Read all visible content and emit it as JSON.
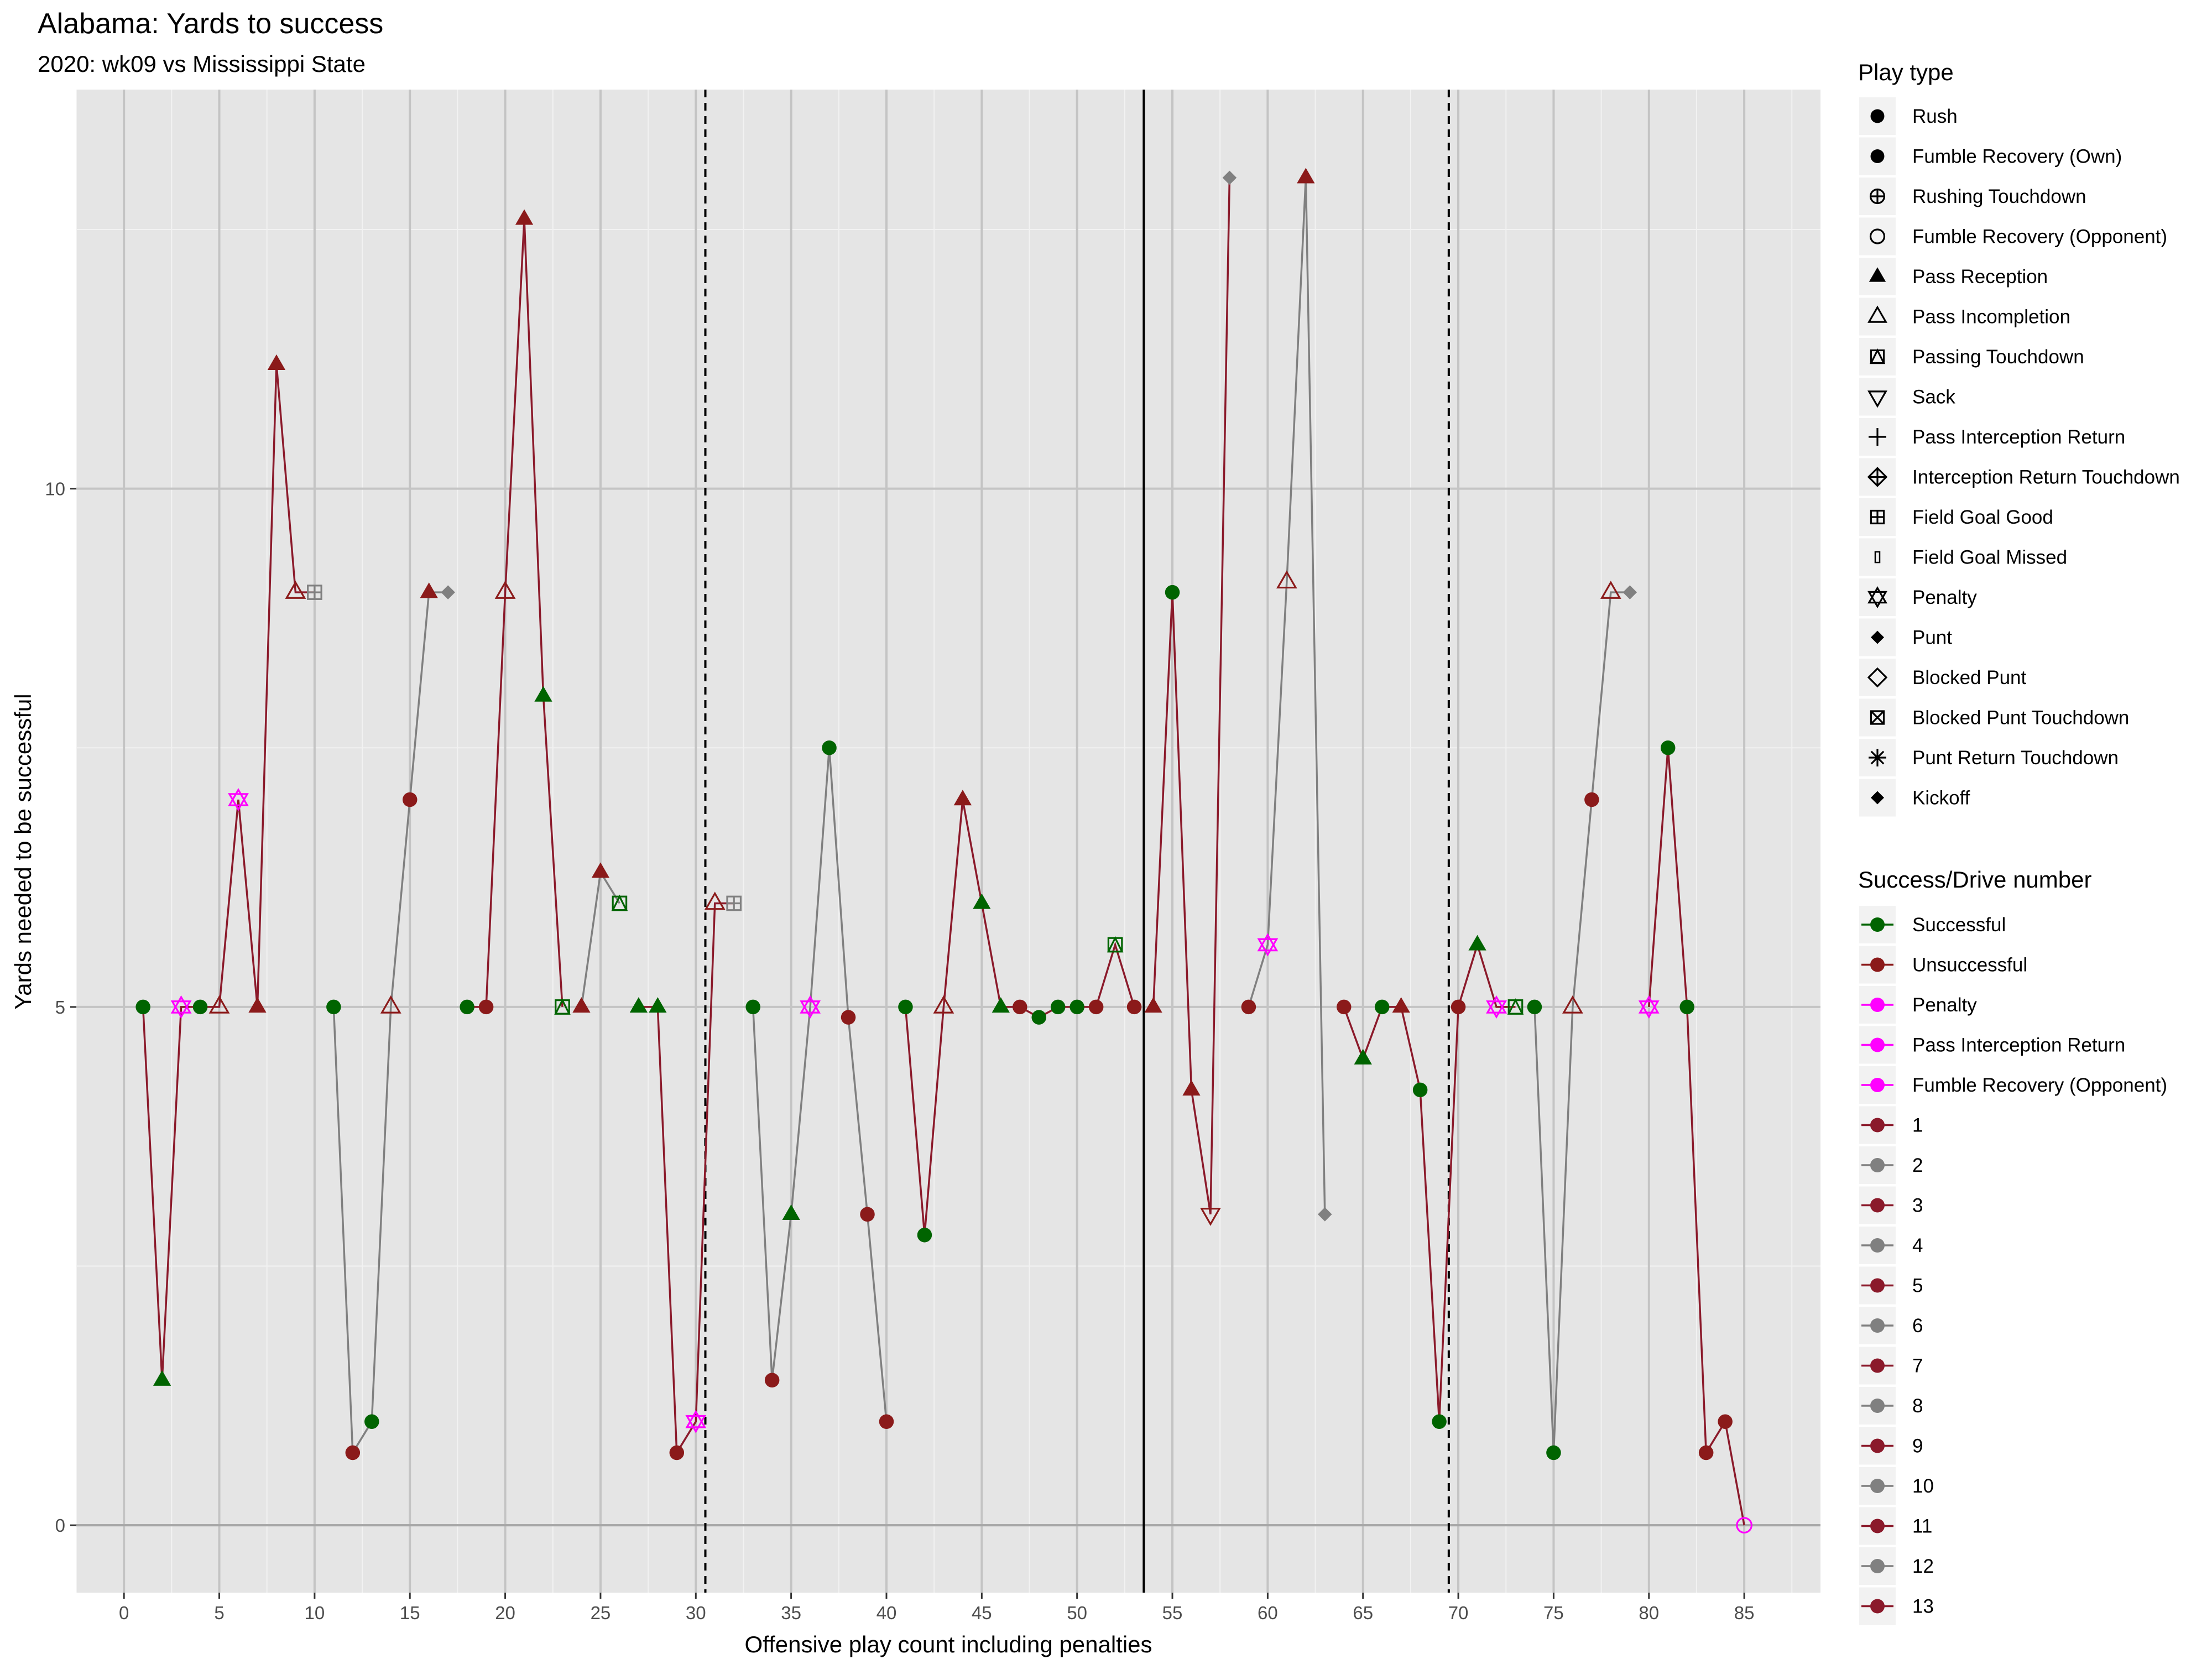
{
  "chart_data": {
    "type": "line",
    "title": "Alabama: Yards to success",
    "subtitle": "2020: wk09 vs Mississippi State",
    "xlabel": "Offensive play count including penalties",
    "ylabel": "Yards needed to be successful",
    "xlim": [
      -2.5,
      89
    ],
    "ylim": [
      -0.65,
      13.85
    ],
    "x_ticks": [
      0,
      5,
      10,
      15,
      20,
      25,
      30,
      35,
      40,
      45,
      50,
      55,
      60,
      65,
      70,
      75,
      80,
      85
    ],
    "y_ticks": [
      0,
      5,
      10
    ],
    "grid": true,
    "vlines": [
      {
        "x": 30.5,
        "style": "dashed"
      },
      {
        "x": 53.5,
        "style": "solid"
      },
      {
        "x": 69.5,
        "style": "dashed"
      }
    ],
    "colors": {
      "Successful": "#006400",
      "Unsuccessful": "#8b1a1a",
      "Penalty": "#ff00ff",
      "drive_odd": "#8b1a2b",
      "drive_even": "#808080"
    },
    "points": [
      {
        "x": 1,
        "y": 5,
        "play": "Rush",
        "result": "Successful",
        "drive": 1
      },
      {
        "x": 2,
        "y": 1.4,
        "play": "Pass Reception",
        "result": "Successful",
        "drive": 1
      },
      {
        "x": 3,
        "y": 5,
        "play": "Penalty",
        "result": "Penalty",
        "drive": 1
      },
      {
        "x": 4,
        "y": 5,
        "play": "Rush",
        "result": "Successful",
        "drive": 1
      },
      {
        "x": 5,
        "y": 5,
        "play": "Pass Incompletion",
        "result": "Unsuccessful",
        "drive": 1
      },
      {
        "x": 6,
        "y": 7,
        "play": "Penalty",
        "result": "Penalty",
        "drive": 1
      },
      {
        "x": 7,
        "y": 5,
        "play": "Pass Reception",
        "result": "Unsuccessful",
        "drive": 1
      },
      {
        "x": 8,
        "y": 11.2,
        "play": "Pass Reception",
        "result": "Unsuccessful",
        "drive": 1
      },
      {
        "x": 9,
        "y": 9,
        "play": "Pass Incompletion",
        "result": "Unsuccessful",
        "drive": 1
      },
      {
        "x": 10,
        "y": 9,
        "play": "Field Goal Good",
        "result": "Unsuccessful",
        "drive": 1
      },
      {
        "x": 11,
        "y": 5,
        "play": "Rush",
        "result": "Successful",
        "drive": 2
      },
      {
        "x": 12,
        "y": 0.7,
        "play": "Rush",
        "result": "Unsuccessful",
        "drive": 2
      },
      {
        "x": 13,
        "y": 1,
        "play": "Rush",
        "result": "Successful",
        "drive": 2
      },
      {
        "x": 14,
        "y": 5,
        "play": "Pass Incompletion",
        "result": "Unsuccessful",
        "drive": 2
      },
      {
        "x": 15,
        "y": 7,
        "play": "Rush",
        "result": "Unsuccessful",
        "drive": 2
      },
      {
        "x": 16,
        "y": 9,
        "play": "Pass Reception",
        "result": "Unsuccessful",
        "drive": 2
      },
      {
        "x": 17,
        "y": 9,
        "play": "Punt",
        "result": "Unsuccessful",
        "drive": 2
      },
      {
        "x": 18,
        "y": 5,
        "play": "Rush",
        "result": "Successful",
        "drive": 3
      },
      {
        "x": 19,
        "y": 5,
        "play": "Rush",
        "result": "Unsuccessful",
        "drive": 3
      },
      {
        "x": 20,
        "y": 9,
        "play": "Pass Incompletion",
        "result": "Unsuccessful",
        "drive": 3
      },
      {
        "x": 21,
        "y": 12.6,
        "play": "Pass Reception",
        "result": "Unsuccessful",
        "drive": 3
      },
      {
        "x": 22,
        "y": 8,
        "play": "Pass Reception",
        "result": "Successful",
        "drive": 3
      },
      {
        "x": 23,
        "y": 5,
        "play": "Passing Touchdown",
        "result": "Successful",
        "drive": 3
      },
      {
        "x": 24,
        "y": 5,
        "play": "Pass Reception",
        "result": "Unsuccessful",
        "drive": 4
      },
      {
        "x": 25,
        "y": 6.3,
        "play": "Pass Reception",
        "result": "Unsuccessful",
        "drive": 4
      },
      {
        "x": 26,
        "y": 6,
        "play": "Passing Touchdown",
        "result": "Successful",
        "drive": 4
      },
      {
        "x": 27,
        "y": 5,
        "play": "Pass Reception",
        "result": "Successful",
        "drive": 5
      },
      {
        "x": 28,
        "y": 5,
        "play": "Pass Reception",
        "result": "Successful",
        "drive": 5
      },
      {
        "x": 29,
        "y": 0.7,
        "play": "Rush",
        "result": "Unsuccessful",
        "drive": 5
      },
      {
        "x": 30,
        "y": 1,
        "play": "Penalty",
        "result": "Penalty",
        "drive": 5
      },
      {
        "x": 31,
        "y": 6,
        "play": "Pass Incompletion",
        "result": "Unsuccessful",
        "drive": 5
      },
      {
        "x": 32,
        "y": 6,
        "play": "Field Goal Good",
        "result": "Unsuccessful",
        "drive": 5
      },
      {
        "x": 33,
        "y": 5,
        "play": "Rush",
        "result": "Successful",
        "drive": 6
      },
      {
        "x": 34,
        "y": 1.4,
        "play": "Rush",
        "result": "Unsuccessful",
        "drive": 6
      },
      {
        "x": 35,
        "y": 3,
        "play": "Pass Reception",
        "result": "Successful",
        "drive": 6
      },
      {
        "x": 36,
        "y": 5,
        "play": "Penalty",
        "result": "Penalty",
        "drive": 6
      },
      {
        "x": 37,
        "y": 7.5,
        "play": "Rush",
        "result": "Successful",
        "drive": 6
      },
      {
        "x": 38,
        "y": 4.9,
        "play": "Rush",
        "result": "Unsuccessful",
        "drive": 6
      },
      {
        "x": 39,
        "y": 3,
        "play": "Rush",
        "result": "Unsuccessful",
        "drive": 6
      },
      {
        "x": 40,
        "y": 1,
        "play": "Rush",
        "result": "Unsuccessful",
        "drive": 6
      },
      {
        "x": 41,
        "y": 5,
        "play": "Rush",
        "result": "Successful",
        "drive": 7
      },
      {
        "x": 42,
        "y": 2.8,
        "play": "Rush",
        "result": "Successful",
        "drive": 7
      },
      {
        "x": 43,
        "y": 5,
        "play": "Pass Incompletion",
        "result": "Unsuccessful",
        "drive": 7
      },
      {
        "x": 44,
        "y": 7,
        "play": "Pass Reception",
        "result": "Unsuccessful",
        "drive": 7
      },
      {
        "x": 45,
        "y": 6,
        "play": "Pass Reception",
        "result": "Successful",
        "drive": 7
      },
      {
        "x": 46,
        "y": 5,
        "play": "Pass Reception",
        "result": "Successful",
        "drive": 7
      },
      {
        "x": 47,
        "y": 5,
        "play": "Rush",
        "result": "Unsuccessful",
        "drive": 7
      },
      {
        "x": 48,
        "y": 4.9,
        "play": "Rush",
        "result": "Successful",
        "drive": 7
      },
      {
        "x": 49,
        "y": 5,
        "play": "Rush",
        "result": "Successful",
        "drive": 7
      },
      {
        "x": 50,
        "y": 5,
        "play": "Rush",
        "result": "Successful",
        "drive": 7
      },
      {
        "x": 51,
        "y": 5,
        "play": "Rush",
        "result": "Unsuccessful",
        "drive": 7
      },
      {
        "x": 52,
        "y": 5.6,
        "play": "Passing Touchdown",
        "result": "Successful",
        "drive": 7
      },
      {
        "x": 53,
        "y": 5,
        "play": "Rush",
        "result": "Unsuccessful",
        "drive": 7
      },
      {
        "x": 54,
        "y": 5,
        "play": "Pass Reception",
        "result": "Unsuccessful",
        "drive": 9
      },
      {
        "x": 55,
        "y": 9,
        "play": "Rush",
        "result": "Successful",
        "drive": 9
      },
      {
        "x": 56,
        "y": 4.2,
        "play": "Pass Reception",
        "result": "Unsuccessful",
        "drive": 9
      },
      {
        "x": 57,
        "y": 3,
        "play": "Sack",
        "result": "Unsuccessful",
        "drive": 9
      },
      {
        "x": 58,
        "y": 13,
        "play": "Punt",
        "result": "Unsuccessful",
        "drive": 9
      },
      {
        "x": 59,
        "y": 5,
        "play": "Rush",
        "result": "Unsuccessful",
        "drive": 10
      },
      {
        "x": 60,
        "y": 5.6,
        "play": "Penalty",
        "result": "Penalty",
        "drive": 10
      },
      {
        "x": 61,
        "y": 9.1,
        "play": "Pass Incompletion",
        "result": "Unsuccessful",
        "drive": 10
      },
      {
        "x": 62,
        "y": 13,
        "play": "Pass Reception",
        "result": "Unsuccessful",
        "drive": 10
      },
      {
        "x": 63,
        "y": 3,
        "play": "Punt",
        "result": "Unsuccessful",
        "drive": 10
      },
      {
        "x": 64,
        "y": 5,
        "play": "Rush",
        "result": "Unsuccessful",
        "drive": 11
      },
      {
        "x": 65,
        "y": 4.5,
        "play": "Pass Reception",
        "result": "Successful",
        "drive": 11
      },
      {
        "x": 66,
        "y": 5,
        "play": "Rush",
        "result": "Successful",
        "drive": 11
      },
      {
        "x": 67,
        "y": 5,
        "play": "Pass Reception",
        "result": "Unsuccessful",
        "drive": 11
      },
      {
        "x": 68,
        "y": 4.2,
        "play": "Rush",
        "result": "Successful",
        "drive": 11
      },
      {
        "x": 69,
        "y": 1,
        "play": "Rush",
        "result": "Successful",
        "drive": 11
      },
      {
        "x": 70,
        "y": 5,
        "play": "Rush",
        "result": "Unsuccessful",
        "drive": 11
      },
      {
        "x": 71,
        "y": 5.6,
        "play": "Pass Reception",
        "result": "Successful",
        "drive": 11
      },
      {
        "x": 72,
        "y": 5,
        "play": "Penalty",
        "result": "Penalty",
        "drive": 11
      },
      {
        "x": 73,
        "y": 5,
        "play": "Passing Touchdown",
        "result": "Successful",
        "drive": 11
      },
      {
        "x": 74,
        "y": 5,
        "play": "Rush",
        "result": "Successful",
        "drive": 12
      },
      {
        "x": 75,
        "y": 0.7,
        "play": "Rush",
        "result": "Successful",
        "drive": 12
      },
      {
        "x": 76,
        "y": 5,
        "play": "Pass Incompletion",
        "result": "Unsuccessful",
        "drive": 12
      },
      {
        "x": 77,
        "y": 7,
        "play": "Rush",
        "result": "Unsuccessful",
        "drive": 12
      },
      {
        "x": 78,
        "y": 9,
        "play": "Pass Incompletion",
        "result": "Unsuccessful",
        "drive": 12
      },
      {
        "x": 79,
        "y": 9,
        "play": "Punt",
        "result": "Unsuccessful",
        "drive": 12
      },
      {
        "x": 80,
        "y": 5,
        "play": "Penalty",
        "result": "Penalty",
        "drive": 13
      },
      {
        "x": 81,
        "y": 7.5,
        "play": "Rush",
        "result": "Successful",
        "drive": 13
      },
      {
        "x": 82,
        "y": 5,
        "play": "Rush",
        "result": "Successful",
        "drive": 13
      },
      {
        "x": 83,
        "y": 0.7,
        "play": "Rush",
        "result": "Unsuccessful",
        "drive": 13
      },
      {
        "x": 84,
        "y": 1,
        "play": "Rush",
        "result": "Unsuccessful",
        "drive": 13
      },
      {
        "x": 85,
        "y": 0,
        "play": "Fumble Recovery (Opponent)",
        "result": "Penalty",
        "drive": 13
      }
    ]
  },
  "legend": {
    "play_type_title": "Play type",
    "play_types": [
      {
        "label": "Rush",
        "icon": "filled-circle"
      },
      {
        "label": "Fumble Recovery (Own)",
        "icon": "filled-circle"
      },
      {
        "label": "Rushing Touchdown",
        "icon": "circle-plus"
      },
      {
        "label": "Fumble Recovery (Opponent)",
        "icon": "open-circle"
      },
      {
        "label": "Pass Reception",
        "icon": "filled-triangle"
      },
      {
        "label": "Pass Incompletion",
        "icon": "open-triangle"
      },
      {
        "label": "Passing Touchdown",
        "icon": "square-triangle"
      },
      {
        "label": "Sack",
        "icon": "down-triangle"
      },
      {
        "label": "Pass Interception Return",
        "icon": "plus"
      },
      {
        "label": "Interception Return Touchdown",
        "icon": "diamond-plus"
      },
      {
        "label": "Field Goal Good",
        "icon": "square-plus"
      },
      {
        "label": "Field Goal Missed",
        "icon": "thin-rect"
      },
      {
        "label": "Penalty",
        "icon": "star-of-david"
      },
      {
        "label": "Punt",
        "icon": "filled-diamond"
      },
      {
        "label": "Blocked Punt",
        "icon": "open-diamond"
      },
      {
        "label": "Blocked Punt Touchdown",
        "icon": "square-x"
      },
      {
        "label": "Punt Return Touchdown",
        "icon": "asterisk"
      },
      {
        "label": "Kickoff",
        "icon": "filled-diamond"
      }
    ],
    "success_title": "Success/Drive number",
    "success_items": [
      {
        "label": "Successful",
        "color": "#006400"
      },
      {
        "label": "Unsuccessful",
        "color": "#8b1a1a"
      },
      {
        "label": "Penalty",
        "color": "#ff00ff"
      },
      {
        "label": "Pass Interception Return",
        "color": "#ff00ff"
      },
      {
        "label": "Fumble Recovery (Opponent)",
        "color": "#ff00ff"
      },
      {
        "label": "1",
        "color": "#8b1a2b"
      },
      {
        "label": "2",
        "color": "#808080"
      },
      {
        "label": "3",
        "color": "#8b1a2b"
      },
      {
        "label": "4",
        "color": "#808080"
      },
      {
        "label": "5",
        "color": "#8b1a2b"
      },
      {
        "label": "6",
        "color": "#808080"
      },
      {
        "label": "7",
        "color": "#8b1a2b"
      },
      {
        "label": "8",
        "color": "#808080"
      },
      {
        "label": "9",
        "color": "#8b1a2b"
      },
      {
        "label": "10",
        "color": "#808080"
      },
      {
        "label": "11",
        "color": "#8b1a2b"
      },
      {
        "label": "12",
        "color": "#808080"
      },
      {
        "label": "13",
        "color": "#8b1a2b"
      }
    ]
  }
}
